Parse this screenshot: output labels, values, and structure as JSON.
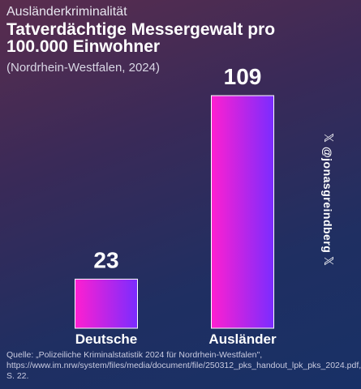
{
  "header": {
    "kicker": "Ausländerkriminalität",
    "title": "Tatverdächtige Messergewalt pro 100.000 Einwohner",
    "subtitle": "(Nordrhein-Westfalen, 2024)"
  },
  "chart_data": {
    "type": "bar",
    "categories": [
      "Deutsche",
      "Ausländer"
    ],
    "values": [
      23,
      109
    ],
    "value_labels": [
      "23",
      "109"
    ],
    "title": "Tatverdächtige Messergewalt pro 100.000 Einwohner",
    "xlabel": "",
    "ylabel": "",
    "grid": false,
    "bar_gradient": [
      "#ff1fd0",
      "#7a2cff"
    ]
  },
  "watermark": {
    "handle": "@jonasgreindberg",
    "icon": "x-logo-icon",
    "x_glyph": "𝕏"
  },
  "source": {
    "text": "Quelle: „Polizeiliche Kriminalstatistik 2024 für Nordrhein-Westfalen\", https://www.im.nrw/system/files/media/document/file/250312_pks_handout_lpk_pks_2024.pdf, S. 22."
  }
}
